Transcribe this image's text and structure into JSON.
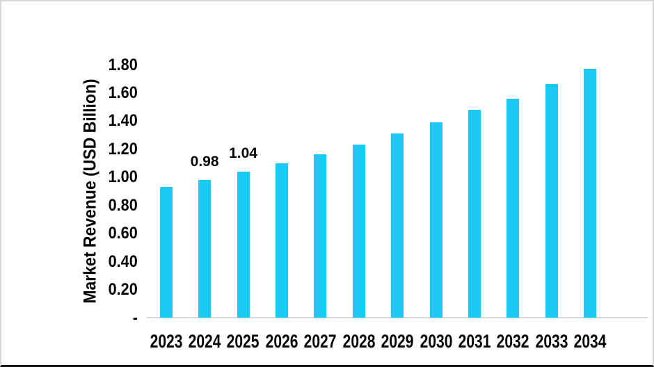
{
  "chart_data": {
    "type": "bar",
    "title": "",
    "categories": [
      "2023",
      "2024",
      "2025",
      "2026",
      "2027",
      "2028",
      "2029",
      "2030",
      "2031",
      "2032",
      "2033",
      "2034"
    ],
    "values": [
      0.93,
      0.98,
      1.04,
      1.1,
      1.16,
      1.23,
      1.31,
      1.39,
      1.48,
      1.56,
      1.66,
      1.77
    ],
    "value_labels": [
      {
        "category": "2024",
        "text": "0.98"
      },
      {
        "category": "2025",
        "text": "1.04"
      }
    ],
    "xlabel": "",
    "ylabel": "Market Revenue (USD Billion)",
    "ylim": [
      0,
      1.9
    ],
    "yticks": [
      {
        "label": "1.80",
        "value": 1.8
      },
      {
        "label": "1.60",
        "value": 1.6
      },
      {
        "label": "1.40",
        "value": 1.4
      },
      {
        "label": "1.20",
        "value": 1.2
      },
      {
        "label": "1.00",
        "value": 1.0
      },
      {
        "label": "0.80",
        "value": 0.8
      },
      {
        "label": "0.60",
        "value": 0.6
      },
      {
        "label": "0.40",
        "value": 0.4
      },
      {
        "label": "0.20",
        "value": 0.2
      },
      {
        "label": "-",
        "value": 0.0
      }
    ],
    "grid": false,
    "legend": false,
    "bar_color": "#1CC9F5",
    "axis_line_color": "#D9D9D9",
    "text_color": "#000000",
    "background_color": "#FFFFFF"
  }
}
